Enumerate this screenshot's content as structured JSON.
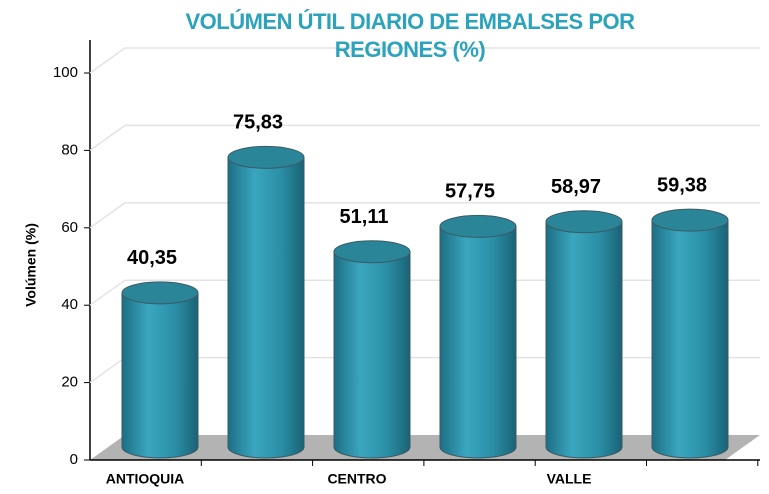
{
  "chart_data": {
    "type": "cylinder",
    "title": "VOLÚMEN ÚTIL DIARIO DE EMBALSES POR REGIONES (%)",
    "y_label": "Volúmen (%)",
    "categories": [
      "ANTIOQUIA",
      null,
      "CENTRO",
      null,
      "VALLE",
      null
    ],
    "values": [
      40.35,
      75.83,
      51.11,
      57.75,
      58.97,
      59.38
    ],
    "value_labels": [
      "40,35",
      "75,83",
      "51,11",
      "57,75",
      "58,97",
      "59,38"
    ],
    "color": "#2a8fa6",
    "ylim": [
      0,
      100
    ],
    "yticks": [
      0,
      20,
      40,
      60,
      80,
      100
    ],
    "grid": true
  }
}
